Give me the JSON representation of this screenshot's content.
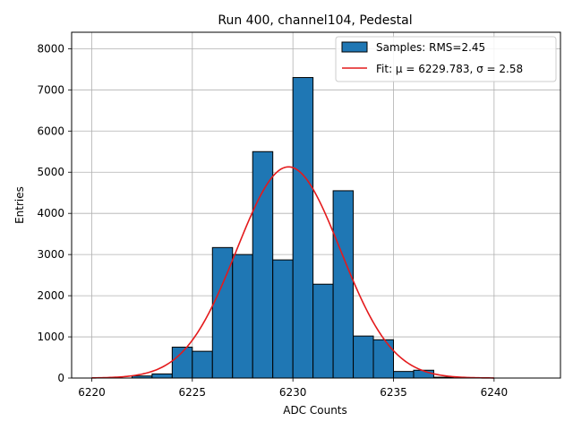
{
  "chart_data": {
    "type": "bar",
    "title": "Run 400, channel104, Pedestal",
    "xlabel": "ADC Counts",
    "ylabel": "Entries",
    "xlim": [
      6219.0,
      6243.3
    ],
    "ylim": [
      0,
      8400
    ],
    "xticks": [
      6220,
      6225,
      6230,
      6235,
      6240
    ],
    "yticks": [
      0,
      1000,
      2000,
      3000,
      4000,
      5000,
      6000,
      7000,
      8000
    ],
    "grid": true,
    "legend_position": "top-right",
    "bin_width": 1,
    "bins": [
      {
        "x": 6222,
        "value": 50
      },
      {
        "x": 6223,
        "value": 100
      },
      {
        "x": 6224,
        "value": 750
      },
      {
        "x": 6225,
        "value": 650
      },
      {
        "x": 6226,
        "value": 3170
      },
      {
        "x": 6227,
        "value": 3000
      },
      {
        "x": 6228,
        "value": 5500
      },
      {
        "x": 6229,
        "value": 2870
      },
      {
        "x": 6230,
        "value": 7300
      },
      {
        "x": 6231,
        "value": 2280
      },
      {
        "x": 6232,
        "value": 4550
      },
      {
        "x": 6233,
        "value": 1020
      },
      {
        "x": 6234,
        "value": 930
      },
      {
        "x": 6235,
        "value": 160
      },
      {
        "x": 6236,
        "value": 190
      },
      {
        "x": 6237,
        "value": 20
      }
    ],
    "fit": {
      "mu": 6229.783,
      "sigma": 2.58,
      "peak": 5130,
      "x_range": [
        6220,
        6240
      ]
    },
    "series": [
      {
        "name": "Samples: RMS=2.45",
        "kind": "histogram",
        "color": "#1f77b4"
      },
      {
        "name": "Fit: μ = 6229.783, σ = 2.58",
        "kind": "line",
        "color": "#e41a1c"
      }
    ]
  }
}
